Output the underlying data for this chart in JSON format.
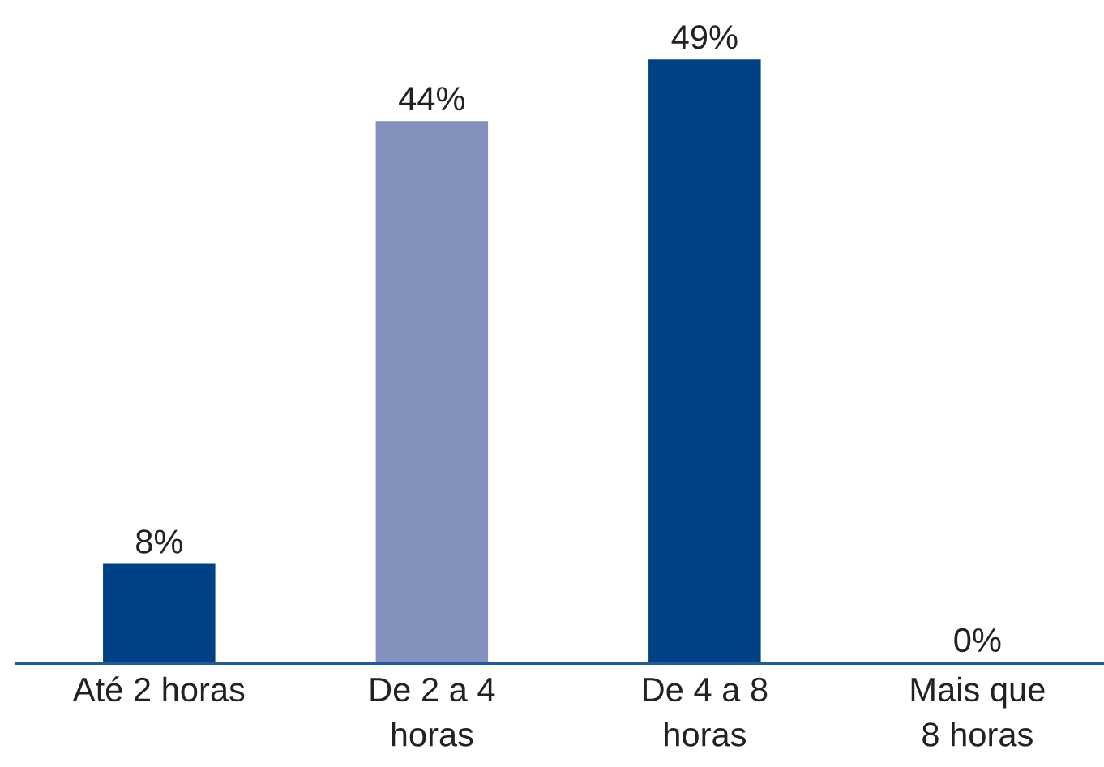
{
  "chart_data": {
    "type": "bar",
    "categories": [
      "Até 2 horas",
      "De 2 a 4\nhoras",
      "De 4 a 8\nhoras",
      "Mais que\n8 horas"
    ],
    "values": [
      8,
      44,
      49,
      0
    ],
    "colors": [
      "#004185",
      "#8591bd",
      "#004185",
      "#8591bd"
    ],
    "value_labels": [
      "8%",
      "44%",
      "49%",
      "0%"
    ],
    "grid": false,
    "legend": false,
    "tick_labels": "x"
  }
}
